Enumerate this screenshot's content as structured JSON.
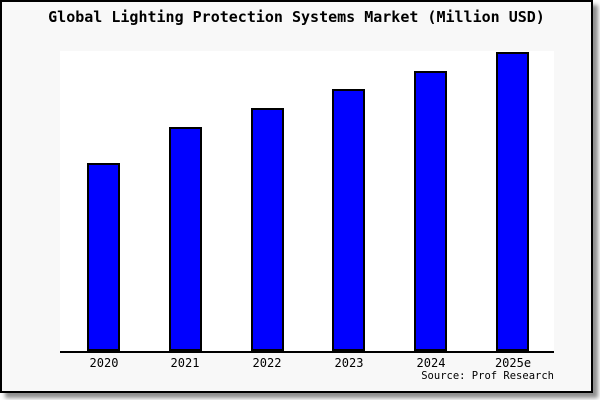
{
  "window": {
    "background_color": "#f8f8f8",
    "frame_border_color": "#000000",
    "plot_background_color": "#ffffff"
  },
  "chart_data": {
    "type": "bar",
    "title": "Global Lighting Protection Systems Market (Million USD)",
    "categories": [
      "2020",
      "2021",
      "2022",
      "2023",
      "2024",
      "2025e"
    ],
    "values": [
      62.7,
      75.0,
      81.3,
      87.7,
      93.7,
      100.0
    ],
    "value_note": "No y-axis scale shown in image; values are relative bar heights normalized to 2025e = 100",
    "xlabel": "",
    "ylabel": "",
    "ylim": [
      0,
      100.3
    ],
    "grid": false,
    "legend": null,
    "bar_color": "#0000ff",
    "bar_border_color": "#000000",
    "axis_line_color": "#000000"
  },
  "footer": {
    "source_label": "Source: Prof Research"
  }
}
